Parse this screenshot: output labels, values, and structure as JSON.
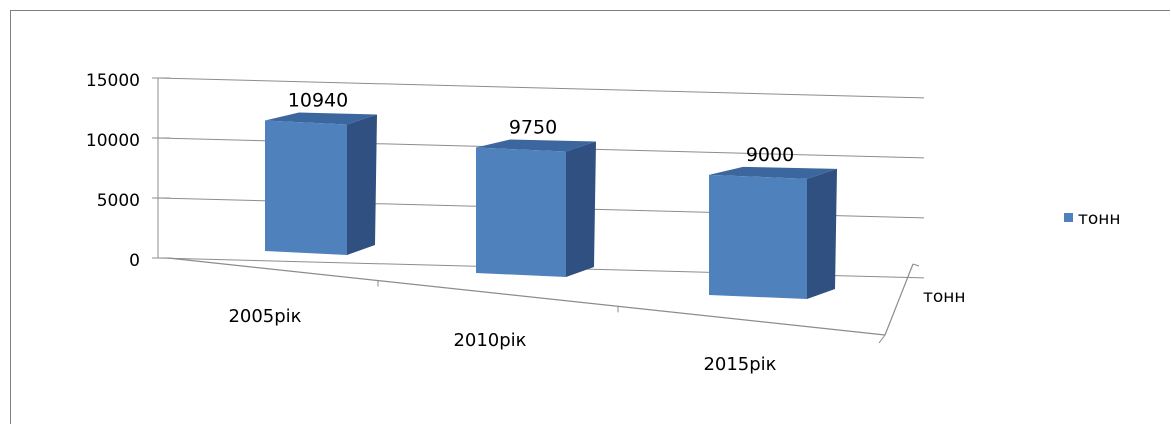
{
  "chart_data": {
    "type": "bar",
    "categories": [
      "2005рік",
      "2010рік",
      "2015рік"
    ],
    "series": [
      {
        "name": "тонн",
        "values": [
          10940,
          9750,
          9000
        ],
        "color": "#4f81bd"
      }
    ],
    "data_labels": [
      "10940",
      "9750",
      "9000"
    ],
    "y_ticks": [
      "0",
      "5000",
      "10000",
      "15000"
    ],
    "ylim": [
      0,
      15000
    ],
    "depth_axis_label": "тонн",
    "legend": {
      "label": "тонн",
      "position": "right"
    },
    "grid": true,
    "title": "",
    "xlabel": "",
    "ylabel": ""
  }
}
